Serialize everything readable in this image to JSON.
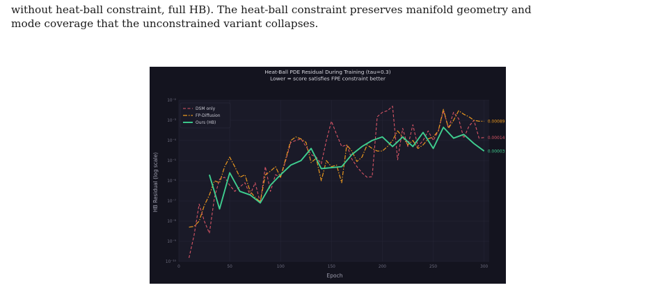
{
  "paper": {
    "line1": "without heat-ball constraint, full HB). The heat-ball constraint preserves manifold geometry and",
    "line2": "mode coverage that the unconstrained variant collapses."
  },
  "chart_data": {
    "type": "line",
    "title": "Heat-Ball PDE Residual During Training   (tau=0.3)",
    "subtitle": "Lower = score satisfies FPE constraint better",
    "xlabel": "Epoch",
    "ylabel": "HB Residual  (log scale)",
    "xlim": [
      0,
      305
    ],
    "xticks": [
      0,
      50,
      100,
      150,
      200,
      250,
      300
    ],
    "y_scale": "log",
    "ylim": [
      1e-10,
      0.01
    ],
    "yticks": [
      {
        "exp": -10,
        "label": "10⁻¹⁰"
      },
      {
        "exp": -9,
        "label": "10⁻⁹"
      },
      {
        "exp": -8,
        "label": "10⁻⁸"
      },
      {
        "exp": -7,
        "label": "10⁻⁷"
      },
      {
        "exp": -6,
        "label": "10⁻⁶"
      },
      {
        "exp": -5,
        "label": "10⁻⁵"
      },
      {
        "exp": -4,
        "label": "10⁻⁴"
      },
      {
        "exp": -3,
        "label": "10⁻³"
      },
      {
        "exp": -2,
        "label": "10⁻²"
      }
    ],
    "grid": true,
    "legend_position": "top-left",
    "series": [
      {
        "name": "DSM only",
        "color": "#d95566",
        "style": "dashed",
        "x": [
          10,
          15,
          20,
          25,
          30,
          35,
          40,
          45,
          50,
          55,
          60,
          65,
          70,
          75,
          80,
          85,
          90,
          95,
          100,
          105,
          110,
          115,
          120,
          125,
          130,
          135,
          140,
          145,
          150,
          155,
          160,
          165,
          170,
          175,
          180,
          185,
          190,
          195,
          200,
          205,
          210,
          215,
          220,
          225,
          230,
          235,
          240,
          245,
          250,
          255,
          260,
          265,
          270,
          275,
          280,
          285,
          290,
          295,
          300
        ],
        "y": [
          1.5e-10,
          2e-09,
          7e-08,
          1e-08,
          2.5e-09,
          1.5e-07,
          1.2e-06,
          1.5e-06,
          6e-07,
          3e-07,
          5e-07,
          8e-07,
          2e-07,
          8e-07,
          8e-08,
          5e-06,
          3e-07,
          2e-06,
          1.5e-06,
          1e-05,
          8e-05,
          0.0001,
          0.00012,
          5e-05,
          2e-05,
          1.5e-05,
          7e-06,
          0.0001,
          0.0009,
          0.0002,
          5e-05,
          6e-05,
          1.2e-05,
          5e-06,
          2.5e-06,
          1.5e-06,
          1.6e-06,
          0.0015,
          0.0025,
          0.003,
          0.005,
          1.1e-05,
          0.0004,
          5e-05,
          0.0006,
          5e-05,
          0.0001,
          0.0003,
          0.0001,
          0.0003,
          0.003,
          0.0004,
          0.0025,
          0.0012,
          0.00013,
          0.0005,
          0.001,
          0.00013,
          0.00014
        ],
        "final_label": "0.00014"
      },
      {
        "name": "FP-Diffusion",
        "color": "#ee9a1e",
        "style": "dashdot",
        "x": [
          10,
          15,
          20,
          25,
          30,
          35,
          40,
          45,
          50,
          55,
          60,
          65,
          70,
          75,
          80,
          85,
          90,
          95,
          100,
          105,
          110,
          115,
          120,
          125,
          130,
          135,
          140,
          145,
          150,
          155,
          160,
          165,
          170,
          175,
          180,
          185,
          190,
          195,
          200,
          205,
          210,
          215,
          220,
          225,
          230,
          235,
          240,
          245,
          250,
          255,
          260,
          265,
          270,
          275,
          280,
          285,
          290,
          295,
          300
        ],
        "y": [
          5e-09,
          5.5e-09,
          1e-08,
          6e-08,
          2e-07,
          1e-06,
          8e-07,
          5e-06,
          1.5e-05,
          5e-06,
          1.5e-06,
          2e-06,
          3e-07,
          1.5e-07,
          9e-08,
          2e-06,
          3e-06,
          5e-06,
          1.5e-06,
          1.2e-05,
          0.0001,
          0.00015,
          0.00012,
          8e-05,
          8e-06,
          1.3e-05,
          1e-06,
          1e-05,
          5e-06,
          6e-06,
          8e-07,
          6e-05,
          3e-05,
          9e-06,
          1.5e-05,
          6e-05,
          4e-05,
          3e-05,
          3e-05,
          5e-05,
          0.0001,
          0.0003,
          0.00015,
          6e-05,
          0.0001,
          4e-05,
          6e-05,
          0.00012,
          0.00015,
          0.0003,
          0.0035,
          0.0004,
          0.001,
          0.003,
          0.002,
          0.0015,
          0.001,
          0.0009,
          0.00089
        ],
        "final_label": "0.00089"
      },
      {
        "name": "Ours (HB)",
        "color": "#3fcf90",
        "style": "solid",
        "x": [
          30,
          40,
          50,
          60,
          70,
          80,
          90,
          100,
          110,
          120,
          130,
          140,
          150,
          160,
          170,
          180,
          190,
          200,
          210,
          220,
          230,
          240,
          250,
          260,
          270,
          280,
          290,
          300
        ],
        "y": [
          2e-06,
          4e-08,
          2.5e-06,
          3e-07,
          2e-07,
          8e-08,
          6e-07,
          2e-06,
          6e-06,
          1e-05,
          4e-05,
          4e-06,
          4.5e-06,
          5e-06,
          2e-05,
          5e-05,
          0.0001,
          0.00015,
          5e-05,
          0.00015,
          5e-05,
          0.00025,
          4e-05,
          0.00045,
          0.00013,
          0.0002,
          7e-05,
          3e-05
        ],
        "final_label": "0.00003"
      }
    ]
  }
}
